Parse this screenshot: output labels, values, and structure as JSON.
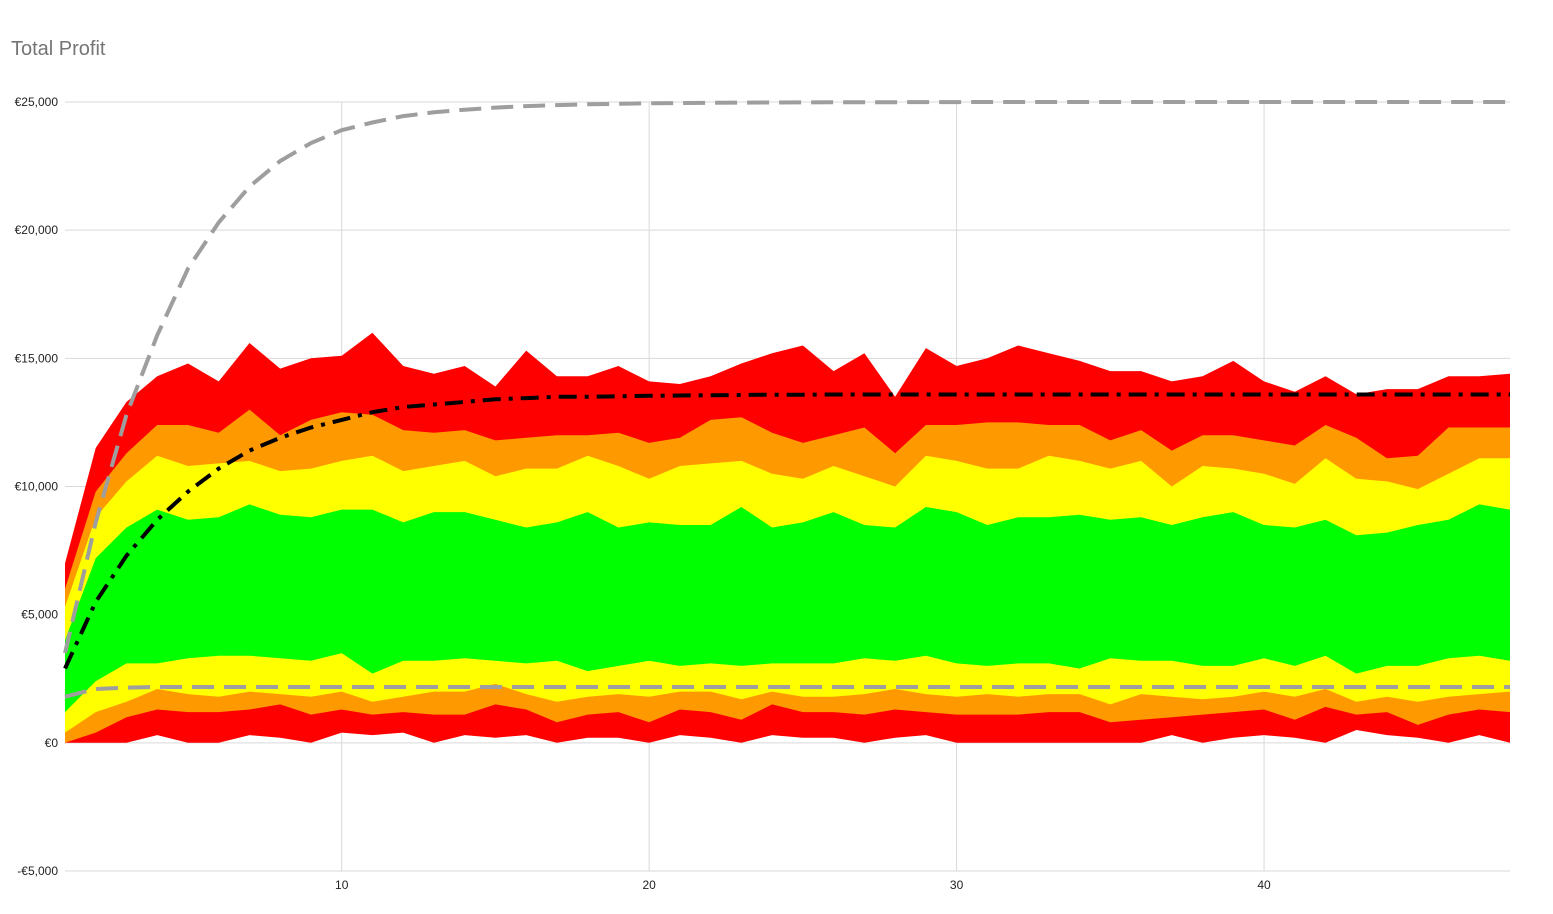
{
  "chart_data": {
    "type": "area",
    "title": "Total Profit",
    "xlabel": "",
    "ylabel": "",
    "currency_prefix": "€",
    "x": [
      1,
      2,
      3,
      4,
      5,
      6,
      7,
      8,
      9,
      10,
      11,
      12,
      13,
      14,
      15,
      16,
      17,
      18,
      19,
      20,
      21,
      22,
      23,
      24,
      25,
      26,
      27,
      28,
      29,
      30,
      31,
      32,
      33,
      34,
      35,
      36,
      37,
      38,
      39,
      40,
      41,
      42,
      43,
      44,
      45,
      46,
      47,
      48
    ],
    "xlim": [
      1,
      48
    ],
    "ylim": [
      -5000,
      25000
    ],
    "x_ticks": [
      10,
      20,
      30,
      40
    ],
    "y_ticks": [
      -5000,
      0,
      5000,
      10000,
      15000,
      20000,
      25000
    ],
    "y_tick_labels": [
      "-€5,000",
      "€0",
      "€5,000",
      "€10,000",
      "€15,000",
      "€20,000",
      "€25,000"
    ],
    "grid": true,
    "legend": "none",
    "bands": [
      {
        "color": "#ff0000",
        "lower": [
          0,
          0,
          0,
          300,
          0,
          0,
          300,
          200,
          0,
          400,
          300,
          400,
          0,
          300,
          200,
          300,
          0,
          200,
          200,
          0,
          300,
          200,
          0,
          300,
          200,
          200,
          0,
          200,
          300,
          0,
          0,
          0,
          0,
          0,
          0,
          0,
          300,
          0,
          200,
          300,
          200,
          0,
          500,
          300,
          200,
          0,
          300,
          0
        ],
        "upper": [
          7000,
          11500,
          13300,
          14300,
          14800,
          14100,
          15600,
          14600,
          15000,
          15100,
          16000,
          14700,
          14400,
          14700,
          13900,
          15300,
          14300,
          14300,
          14700,
          14100,
          14000,
          14300,
          14800,
          15200,
          15500,
          14500,
          15200,
          13500,
          15400,
          14700,
          15000,
          15500,
          15200,
          14900,
          14500,
          14500,
          14100,
          14300,
          14900,
          14100,
          13700,
          14300,
          13600,
          13800,
          13800,
          14300,
          14300,
          14400
        ]
      },
      {
        "color": "#ff9900",
        "lower": [
          0,
          400,
          1000,
          1300,
          1200,
          1200,
          1300,
          1500,
          1100,
          1300,
          1100,
          1200,
          1100,
          1100,
          1500,
          1300,
          800,
          1100,
          1200,
          800,
          1300,
          1200,
          900,
          1500,
          1200,
          1200,
          1100,
          1300,
          1200,
          1100,
          1100,
          1100,
          1200,
          1200,
          800,
          900,
          1000,
          1100,
          1200,
          1300,
          900,
          1400,
          1100,
          1200,
          700,
          1100,
          1300,
          1200
        ],
        "upper": [
          6000,
          9800,
          11300,
          12400,
          12400,
          12100,
          13000,
          12000,
          12600,
          12900,
          12800,
          12200,
          12100,
          12200,
          11800,
          11900,
          12000,
          12000,
          12100,
          11700,
          11900,
          12600,
          12700,
          12100,
          11700,
          12000,
          12300,
          11300,
          12400,
          12400,
          12500,
          12500,
          12400,
          12400,
          11800,
          12200,
          11400,
          12000,
          12000,
          11800,
          11600,
          12400,
          11900,
          11100,
          11200,
          12300,
          12300,
          12300
        ]
      },
      {
        "color": "#ffff00",
        "lower": [
          400,
          1200,
          1600,
          2100,
          1900,
          1800,
          2000,
          1900,
          1800,
          2000,
          1600,
          1800,
          2000,
          2000,
          2300,
          1900,
          1600,
          1800,
          1900,
          1800,
          2000,
          2000,
          1700,
          2000,
          1800,
          1800,
          1900,
          2100,
          1900,
          1800,
          1900,
          1800,
          1900,
          1900,
          1500,
          1900,
          1800,
          1700,
          1800,
          2000,
          1800,
          2100,
          1600,
          1800,
          1600,
          1800,
          1900,
          2000
        ],
        "upper": [
          5300,
          8800,
          10200,
          11200,
          10800,
          10900,
          11000,
          10600,
          10700,
          11000,
          11200,
          10600,
          10800,
          11000,
          10400,
          10700,
          10700,
          11200,
          10800,
          10300,
          10800,
          10900,
          11000,
          10500,
          10300,
          10800,
          10400,
          10000,
          11200,
          11000,
          10700,
          10700,
          11200,
          11000,
          10700,
          11000,
          10000,
          10800,
          10700,
          10500,
          10100,
          11100,
          10300,
          10200,
          9900,
          10500,
          11100,
          11100
        ]
      },
      {
        "color": "#00ff00",
        "lower": [
          1200,
          2400,
          3100,
          3100,
          3300,
          3400,
          3400,
          3300,
          3200,
          3500,
          2700,
          3200,
          3200,
          3300,
          3200,
          3100,
          3200,
          2800,
          3000,
          3200,
          3000,
          3100,
          3000,
          3100,
          3100,
          3100,
          3300,
          3200,
          3400,
          3100,
          3000,
          3100,
          3100,
          2900,
          3300,
          3200,
          3200,
          3000,
          3000,
          3300,
          3000,
          3400,
          2700,
          3000,
          3000,
          3300,
          3400,
          3200
        ],
        "upper": [
          4000,
          7200,
          8400,
          9100,
          8700,
          8800,
          9300,
          8900,
          8800,
          9100,
          9100,
          8600,
          9000,
          9000,
          8700,
          8400,
          8600,
          9000,
          8400,
          8600,
          8500,
          8500,
          9200,
          8400,
          8600,
          9000,
          8500,
          8400,
          9200,
          9000,
          8500,
          8800,
          8800,
          8900,
          8700,
          8800,
          8500,
          8800,
          9000,
          8500,
          8400,
          8700,
          8100,
          8200,
          8500,
          8700,
          9300,
          9100
        ]
      }
    ],
    "series": [
      {
        "style": "dash-dot",
        "color": "#000000",
        "values": [
          2900,
          5500,
          7300,
          8700,
          9800,
          10700,
          11400,
          11900,
          12300,
          12600,
          12900,
          13100,
          13200,
          13300,
          13400,
          13450,
          13500,
          13500,
          13520,
          13540,
          13550,
          13560,
          13570,
          13580,
          13580,
          13590,
          13590,
          13590,
          13590,
          13590,
          13590,
          13590,
          13590,
          13590,
          13590,
          13590,
          13590,
          13590,
          13590,
          13590,
          13590,
          13590,
          13590,
          13590,
          13590,
          13590,
          13590,
          13590
        ]
      },
      {
        "style": "dashed",
        "color": "#9e9e9e",
        "values": [
          3500,
          8600,
          12800,
          15900,
          18500,
          20300,
          21700,
          22700,
          23400,
          23900,
          24200,
          24450,
          24600,
          24700,
          24780,
          24840,
          24880,
          24910,
          24930,
          24950,
          24960,
          24970,
          24975,
          24980,
          24985,
          24990,
          24992,
          24994,
          24996,
          24998,
          25000,
          25000,
          25000,
          25000,
          25000,
          25000,
          25000,
          25000,
          25000,
          25000,
          25000,
          25000,
          25000,
          25000,
          25000,
          25000,
          25000,
          25000
        ]
      },
      {
        "style": "dashed",
        "color": "#9e9e9e",
        "values": [
          1800,
          2100,
          2150,
          2180,
          2180,
          2180,
          2180,
          2180,
          2180,
          2180,
          2180,
          2180,
          2180,
          2180,
          2180,
          2180,
          2180,
          2180,
          2180,
          2180,
          2180,
          2180,
          2180,
          2180,
          2180,
          2180,
          2180,
          2180,
          2180,
          2180,
          2180,
          2180,
          2180,
          2180,
          2180,
          2180,
          2180,
          2180,
          2180,
          2180,
          2180,
          2180,
          2180,
          2180,
          2180,
          2180,
          2180,
          2180
        ]
      }
    ]
  }
}
